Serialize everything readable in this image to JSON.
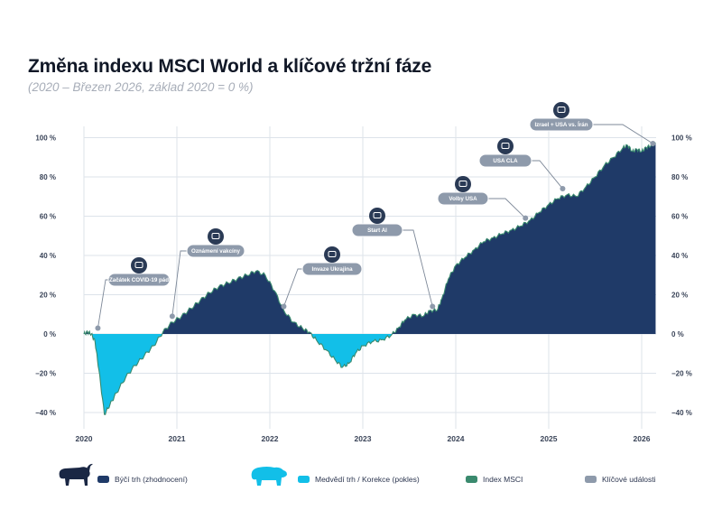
{
  "title": "Změna indexu MSCI World a klíčové tržní fáze",
  "subtitle": "(2020 – Březen 2026, základ 2020 = 0 %)",
  "colors": {
    "bull": "#1f3a68",
    "bear": "#12bfe8",
    "msci": "#3a8a6e",
    "events": "#8e9aab",
    "grid": "#dde3ea"
  },
  "chart_data": {
    "type": "area",
    "xlim": [
      2020,
      2026.2
    ],
    "ylim": [
      -45,
      100
    ],
    "x_ticks": [
      "2020",
      "2021",
      "2022",
      "2023",
      "2024",
      "2025",
      "2026"
    ],
    "y_ticks": [
      "100 %",
      "80 %",
      "60 %",
      "40 %",
      "20 %",
      "0 %",
      "−20 %",
      "−40 %"
    ],
    "y_tick_values": [
      100,
      80,
      60,
      40,
      20,
      0,
      -20,
      -40
    ],
    "series": [
      {
        "name": "Index MSCI",
        "points": [
          [
            2020.0,
            0
          ],
          [
            2020.04,
            1
          ],
          [
            2020.08,
            0
          ],
          [
            2020.12,
            -4
          ],
          [
            2020.16,
            -18
          ],
          [
            2020.22,
            -41
          ],
          [
            2020.28,
            -36
          ],
          [
            2020.35,
            -30
          ],
          [
            2020.45,
            -22
          ],
          [
            2020.55,
            -16
          ],
          [
            2020.65,
            -11
          ],
          [
            2020.75,
            -6
          ],
          [
            2020.85,
            1
          ],
          [
            2020.95,
            6
          ],
          [
            2021.05,
            9
          ],
          [
            2021.15,
            13
          ],
          [
            2021.25,
            17
          ],
          [
            2021.35,
            21
          ],
          [
            2021.45,
            24
          ],
          [
            2021.55,
            26
          ],
          [
            2021.65,
            28
          ],
          [
            2021.75,
            30
          ],
          [
            2021.85,
            32
          ],
          [
            2021.95,
            30
          ],
          [
            2022.05,
            22
          ],
          [
            2022.15,
            12
          ],
          [
            2022.25,
            6
          ],
          [
            2022.35,
            3
          ],
          [
            2022.42,
            1
          ],
          [
            2022.5,
            -3
          ],
          [
            2022.6,
            -8
          ],
          [
            2022.7,
            -13
          ],
          [
            2022.78,
            -17
          ],
          [
            2022.85,
            -15
          ],
          [
            2022.92,
            -10
          ],
          [
            2023.0,
            -6
          ],
          [
            2023.1,
            -4
          ],
          [
            2023.2,
            -3
          ],
          [
            2023.3,
            -1
          ],
          [
            2023.38,
            3
          ],
          [
            2023.45,
            7
          ],
          [
            2023.55,
            10
          ],
          [
            2023.65,
            9
          ],
          [
            2023.72,
            12
          ],
          [
            2023.8,
            12
          ],
          [
            2023.85,
            18
          ],
          [
            2023.92,
            28
          ],
          [
            2024.0,
            35
          ],
          [
            2024.1,
            39
          ],
          [
            2024.2,
            43
          ],
          [
            2024.3,
            47
          ],
          [
            2024.4,
            49
          ],
          [
            2024.5,
            51
          ],
          [
            2024.6,
            53
          ],
          [
            2024.7,
            55
          ],
          [
            2024.8,
            58
          ],
          [
            2024.9,
            62
          ],
          [
            2025.0,
            66
          ],
          [
            2025.1,
            69
          ],
          [
            2025.2,
            71
          ],
          [
            2025.3,
            70
          ],
          [
            2025.4,
            75
          ],
          [
            2025.5,
            80
          ],
          [
            2025.6,
            86
          ],
          [
            2025.7,
            90
          ],
          [
            2025.8,
            95
          ],
          [
            2025.85,
            96
          ],
          [
            2025.9,
            93
          ],
          [
            2025.95,
            94
          ],
          [
            2026.0,
            93
          ],
          [
            2026.05,
            95
          ],
          [
            2026.1,
            96
          ],
          [
            2026.15,
            97
          ]
        ]
      }
    ],
    "events": [
      {
        "label": "Začátek COVID-19 pád",
        "x": 2020.15,
        "y": 3,
        "icon": "mask-icon"
      },
      {
        "label": "Oznámení vakcíny",
        "x": 2020.95,
        "y": 9,
        "icon": "syringe-icon"
      },
      {
        "label": "Invaze Ukrajina",
        "x": 2022.15,
        "y": 14,
        "icon": "tank-icon"
      },
      {
        "label": "Start AI",
        "x": 2023.75,
        "y": 14,
        "icon": "ai-chip-icon"
      },
      {
        "label": "Volby USA",
        "x": 2024.75,
        "y": 59,
        "icon": "ballot-icon"
      },
      {
        "label": "USA CLA",
        "x": 2025.15,
        "y": 74,
        "icon": "document-icon"
      },
      {
        "label": "Izrael + USA vs. Írán",
        "x": 2026.12,
        "y": 97,
        "icon": "missile-icon"
      }
    ],
    "legend": [
      {
        "label": "Býčí trh (zhodnocení)",
        "icon": "bull-icon",
        "color": "#1f3a68"
      },
      {
        "label": "Medvědí trh / Korekce (pokles)",
        "icon": "bear-icon",
        "color": "#12bfe8"
      },
      {
        "label": "Index MSCI",
        "color": "#3a8a6e"
      },
      {
        "label": "Klíčové události",
        "color": "#8e9aab"
      }
    ],
    "legend_placement": "bottom",
    "grid": true
  }
}
